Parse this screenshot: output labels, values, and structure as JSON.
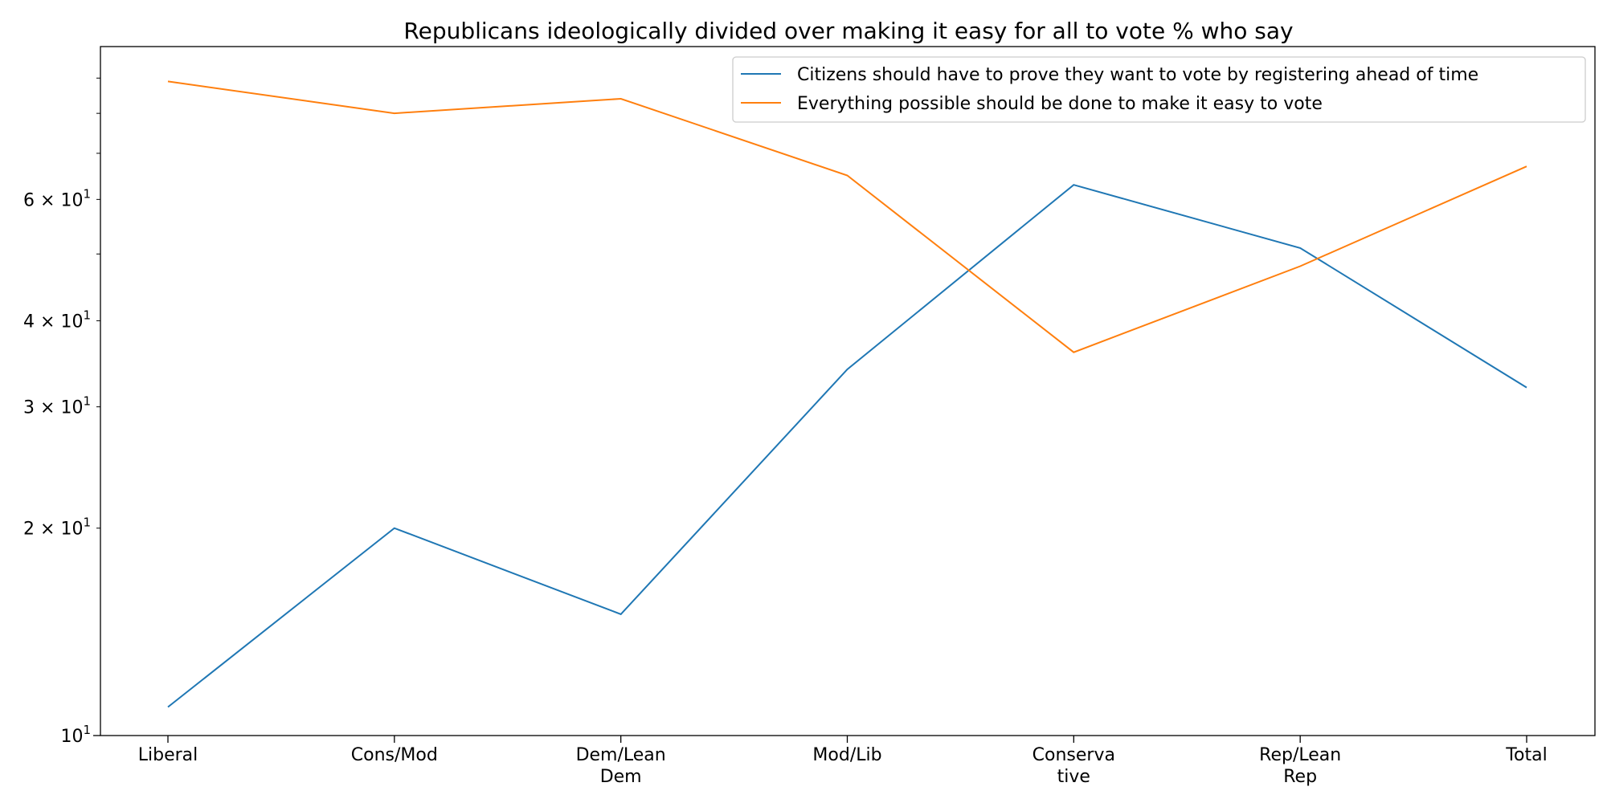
{
  "chart_data": {
    "type": "line",
    "title": "Republicans ideologically divided over making it easy for all to vote % who say",
    "xlabel": "",
    "ylabel": "",
    "categories": [
      "Liberal",
      "Cons/Mod",
      "Dem/Lean\nDem",
      "Mod/Lib",
      "Conserva\ntive",
      "Rep/Lean\nRep",
      "Total"
    ],
    "series": [
      {
        "name": "Citizens should have to prove they want to vote by registering ahead of time",
        "color": "#1f77b4",
        "values": [
          11,
          20,
          15,
          34,
          63,
          51,
          32
        ]
      },
      {
        "name": "Everything possible should be done to make it easy to vote",
        "color": "#ff7f0e",
        "values": [
          89,
          80,
          84,
          65,
          36,
          48,
          67
        ]
      }
    ],
    "yscale": "log",
    "ylim": [
      10,
      100
    ],
    "y_major_ticks": [
      {
        "value": 10,
        "label": "10^1"
      }
    ],
    "y_minor_ticks": [
      {
        "value": 20,
        "label": "2 × 10^1"
      },
      {
        "value": 30,
        "label": "3 × 10^1"
      },
      {
        "value": 40,
        "label": "4 × 10^1"
      },
      {
        "value": 60,
        "label": "6 × 10^1"
      }
    ],
    "grid": false,
    "legend_position": "upper-right"
  }
}
